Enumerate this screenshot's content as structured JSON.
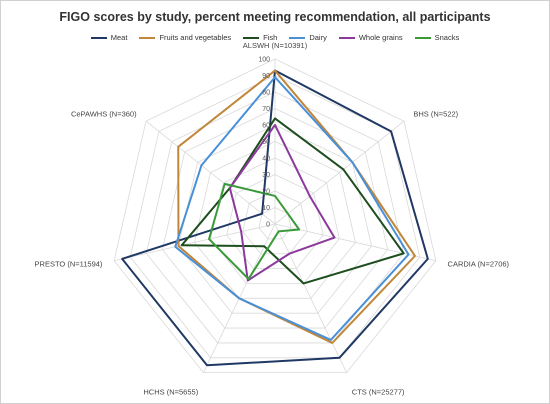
{
  "chart_data": {
    "type": "radar",
    "title": "FIGO scores by study, percent meeting recommendation, all participants",
    "categories": [
      "ALSWH (N=10391)",
      "BHS (N=522)",
      "CARDIA (N=2706)",
      "CTS (N=25277)",
      "HCHS (N=5655)",
      "PRESTO (N=11594)",
      "CePAWHS (N=360)"
    ],
    "ticks": [
      "0",
      "10",
      "20",
      "30",
      "40",
      "50",
      "60",
      "70",
      "80",
      "90",
      "100"
    ],
    "rlim": [
      0,
      100
    ],
    "grid": true,
    "legend_position": "top",
    "series": [
      {
        "name": "Meat",
        "color": "#1f3864",
        "values": [
          93,
          90,
          95,
          90,
          95,
          95,
          10
        ]
      },
      {
        "name": "Fruits and vegetables",
        "color": "#c0873a",
        "values": [
          93,
          60,
          87,
          80,
          50,
          60,
          75
        ]
      },
      {
        "name": "Fish",
        "color": "#1e4d1e",
        "values": [
          64,
          53,
          80,
          40,
          15,
          58,
          35
        ]
      },
      {
        "name": "Dairy",
        "color": "#4a90d9",
        "values": [
          89,
          60,
          83,
          78,
          50,
          62,
          57
        ]
      },
      {
        "name": "Whole grains",
        "color": "#8b3a9c",
        "values": [
          60,
          27,
          37,
          20,
          38,
          21,
          35
        ]
      },
      {
        "name": "Snacks",
        "color": "#3a9a3a",
        "values": [
          17,
          10,
          15,
          5,
          37,
          41,
          39
        ]
      }
    ]
  }
}
